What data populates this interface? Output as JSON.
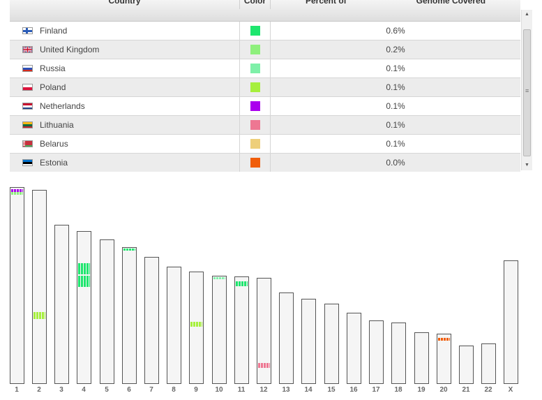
{
  "table": {
    "headers": {
      "country": "Country",
      "color": "Color",
      "percent_prefix": "Percent of",
      "percent_suffix": "Genome Covered"
    },
    "rows": [
      {
        "country": "Finland",
        "flag": "flag-finland-icon",
        "color": "#1ee66e",
        "percent": "0.6%"
      },
      {
        "country": "United Kingdom",
        "flag": "flag-united-kingdom-icon",
        "color": "#8ef07c",
        "percent": "0.2%"
      },
      {
        "country": "Russia",
        "flag": "flag-russia-icon",
        "color": "#7ef0a8",
        "percent": "0.1%"
      },
      {
        "country": "Poland",
        "flag": "flag-poland-icon",
        "color": "#a6ef3c",
        "percent": "0.1%"
      },
      {
        "country": "Netherlands",
        "flag": "flag-netherlands-icon",
        "color": "#aa00ee",
        "percent": "0.1%"
      },
      {
        "country": "Lithuania",
        "flag": "flag-lithuania-icon",
        "color": "#ee7792",
        "percent": "0.1%"
      },
      {
        "country": "Belarus",
        "flag": "flag-belarus-icon",
        "color": "#eecf7a",
        "percent": "0.1%"
      },
      {
        "country": "Estonia",
        "flag": "flag-estonia-icon",
        "color": "#f05d0a",
        "percent": "0.0%"
      }
    ],
    "scrollbar": {
      "up_icon": "scroll-up-arrow-icon",
      "down_icon": "scroll-down-arrow-icon",
      "grip_icon": "scroll-grip-icon"
    }
  },
  "karyogram": {
    "chromosomes": [
      {
        "label": "1"
      },
      {
        "label": "2"
      },
      {
        "label": "3"
      },
      {
        "label": "4"
      },
      {
        "label": "5"
      },
      {
        "label": "6"
      },
      {
        "label": "7"
      },
      {
        "label": "8"
      },
      {
        "label": "9"
      },
      {
        "label": "10"
      },
      {
        "label": "11"
      },
      {
        "label": "12"
      },
      {
        "label": "13"
      },
      {
        "label": "14"
      },
      {
        "label": "15"
      },
      {
        "label": "16"
      },
      {
        "label": "17"
      },
      {
        "label": "18"
      },
      {
        "label": "19"
      },
      {
        "label": "20"
      },
      {
        "label": "21"
      },
      {
        "label": "22"
      },
      {
        "label": "X"
      }
    ]
  }
}
